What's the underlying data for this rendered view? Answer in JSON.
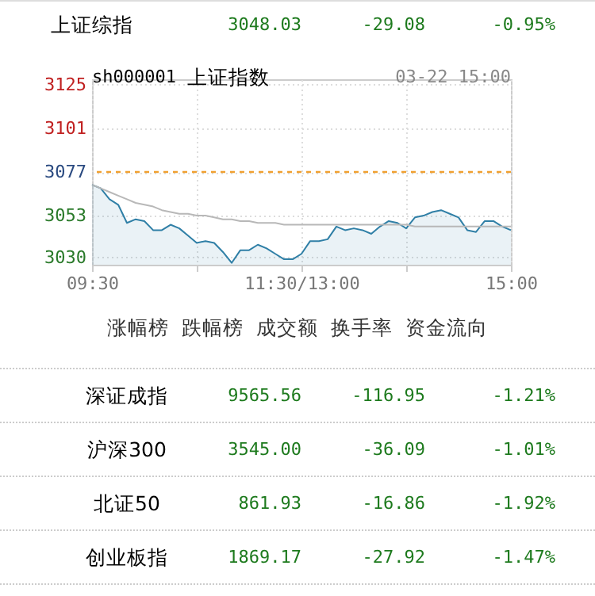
{
  "chart_data": [
    {
      "type": "other",
      "annotations": [
        "上证综指",
        "3048.03",
        "-29.08",
        "-0.95%"
      ]
    },
    {
      "type": "line",
      "title": "上证指数",
      "subtitle": "sh000001",
      "annotations": [
        "03-22 15:00"
      ],
      "categories": [
        "09:30",
        null,
        null,
        null,
        null,
        null,
        null,
        null,
        null,
        null,
        null,
        null,
        null,
        null,
        null,
        null,
        null,
        null,
        null,
        null,
        null,
        null,
        null,
        null,
        "11:30/13:00",
        null,
        null,
        null,
        null,
        null,
        null,
        null,
        null,
        null,
        null,
        null,
        null,
        null,
        null,
        null,
        null,
        null,
        null,
        null,
        null,
        null,
        null,
        null,
        "15:00"
      ],
      "ylim": [
        3026,
        3128
      ],
      "yticks": [
        3030,
        3053,
        3077,
        3101,
        3125
      ],
      "grid": true,
      "ref_lines": [
        {
          "axis": "y",
          "value": 3077,
          "color": "#f0a030",
          "line_style": "dashed"
        }
      ],
      "series": [
        {
          "type": "area",
          "color": "#2f7fa6",
          "values": [
            3070,
            3068,
            3062,
            3059,
            3049,
            3051,
            3050,
            3045,
            3045,
            3048,
            3046,
            3042,
            3038,
            3039,
            3038,
            3033,
            3027,
            3034,
            3034,
            3037,
            3035,
            3032,
            3029,
            3029,
            3032,
            3039,
            3039,
            3040,
            3047,
            3045,
            3046,
            3045,
            3043,
            3047,
            3050,
            3049,
            3046,
            3052,
            3053,
            3055,
            3056,
            3054,
            3052,
            3045,
            3044,
            3050,
            3050,
            3047,
            3045
          ]
        },
        {
          "type": "line",
          "color": "#b8b8b8",
          "values": [
            3070,
            3068,
            3066,
            3064,
            3062,
            3060,
            3059,
            3058,
            3056,
            3055,
            3054,
            3054,
            3053,
            3053,
            3052,
            3051,
            3051,
            3050,
            3050,
            3049,
            3049,
            3049,
            3048,
            3048,
            3048,
            3048,
            3048,
            3048,
            3048,
            3048,
            3048,
            3048,
            3048,
            3048,
            3048,
            3048,
            3048,
            3047,
            3047,
            3047,
            3047,
            3047,
            3047,
            3047,
            3047,
            3047,
            3047,
            3047,
            3047
          ]
        }
      ]
    },
    {
      "type": "other",
      "annotations": [
        "涨幅榜",
        "跌幅榜",
        "成交额",
        "换手率",
        "资金流向"
      ]
    },
    {
      "type": "other",
      "annotations": [
        "深证成指",
        "9565.56",
        "-116.95",
        "-1.21%",
        "沪深300",
        "3545.00",
        "-36.09",
        "-1.01%",
        "北证50",
        "861.93",
        "-16.86",
        "-1.92%",
        "创业板指",
        "1869.17",
        "-27.92",
        "-1.47%"
      ]
    }
  ]
}
